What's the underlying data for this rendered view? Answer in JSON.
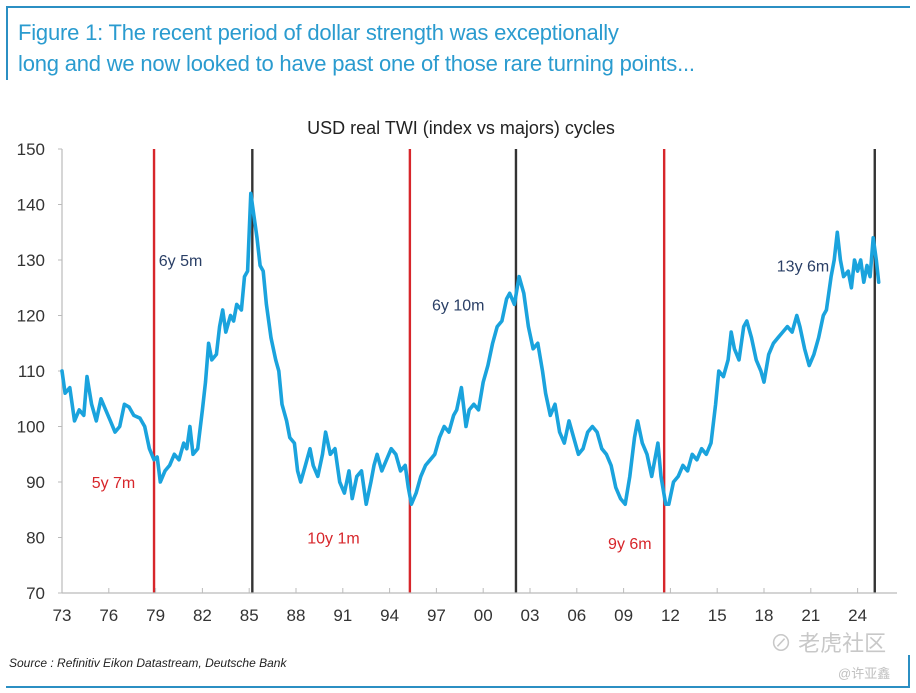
{
  "figure": {
    "title_line1": "Figure 1: The recent period of dollar strength was exceptionally",
    "title_line2": "long and we now looked to have past one of those rare turning points...",
    "source": "Source : Refinitiv Eikon Datastream, Deutsche Bank",
    "watermark_main": "⊘ 老虎社区",
    "watermark_user": "@许亚鑫"
  },
  "colors": {
    "line": "#1aa3dd",
    "trough_marker": "#d7262b",
    "peak_marker": "#333333",
    "title": "#2a9bcf",
    "accent_border": "#2b8fc3"
  },
  "chart_data": {
    "type": "line",
    "title": "USD real TWI (index vs majors) cycles",
    "xlabel": "",
    "ylabel": "",
    "xlim": [
      1973,
      2025.5
    ],
    "ylim": [
      70,
      150
    ],
    "y_ticks": [
      70,
      80,
      90,
      100,
      110,
      120,
      130,
      140,
      150
    ],
    "x_ticks": [
      1973,
      1976,
      1979,
      1982,
      1985,
      1988,
      1991,
      1994,
      1997,
      2000,
      2003,
      2006,
      2009,
      2012,
      2015,
      2018,
      2021,
      2024
    ],
    "x_tick_labels": [
      "73",
      "76",
      "79",
      "82",
      "85",
      "88",
      "91",
      "94",
      "97",
      "00",
      "03",
      "06",
      "09",
      "12",
      "15",
      "18",
      "21",
      "24"
    ],
    "grid": false,
    "series": [
      {
        "name": "USD real TWI",
        "points": [
          [
            1973.0,
            110
          ],
          [
            1973.2,
            106
          ],
          [
            1973.5,
            107
          ],
          [
            1973.8,
            101
          ],
          [
            1974.1,
            103
          ],
          [
            1974.4,
            102
          ],
          [
            1974.6,
            109
          ],
          [
            1974.9,
            104
          ],
          [
            1975.2,
            101
          ],
          [
            1975.5,
            105
          ],
          [
            1975.8,
            103
          ],
          [
            1976.1,
            101
          ],
          [
            1976.4,
            99
          ],
          [
            1976.7,
            100
          ],
          [
            1977.0,
            104
          ],
          [
            1977.3,
            103.5
          ],
          [
            1977.6,
            102
          ],
          [
            1978.0,
            101.5
          ],
          [
            1978.3,
            100
          ],
          [
            1978.6,
            96
          ],
          [
            1978.9,
            94
          ],
          [
            1979.1,
            94.5
          ],
          [
            1979.3,
            90
          ],
          [
            1979.6,
            92
          ],
          [
            1979.9,
            93
          ],
          [
            1980.2,
            95
          ],
          [
            1980.5,
            94
          ],
          [
            1980.8,
            97
          ],
          [
            1981.0,
            96
          ],
          [
            1981.2,
            100
          ],
          [
            1981.4,
            95
          ],
          [
            1981.7,
            96
          ],
          [
            1982.0,
            103
          ],
          [
            1982.2,
            108
          ],
          [
            1982.4,
            115
          ],
          [
            1982.6,
            112
          ],
          [
            1982.9,
            113
          ],
          [
            1983.1,
            118
          ],
          [
            1983.3,
            121
          ],
          [
            1983.5,
            117
          ],
          [
            1983.8,
            120
          ],
          [
            1984.0,
            119
          ],
          [
            1984.2,
            122
          ],
          [
            1984.5,
            121
          ],
          [
            1984.7,
            127
          ],
          [
            1984.9,
            128
          ],
          [
            1985.1,
            142
          ],
          [
            1985.3,
            138
          ],
          [
            1985.5,
            134
          ],
          [
            1985.7,
            129
          ],
          [
            1985.9,
            128
          ],
          [
            1986.1,
            122
          ],
          [
            1986.4,
            116
          ],
          [
            1986.7,
            112
          ],
          [
            1986.9,
            110
          ],
          [
            1987.1,
            104
          ],
          [
            1987.4,
            101
          ],
          [
            1987.6,
            98
          ],
          [
            1987.9,
            97
          ],
          [
            1988.1,
            92
          ],
          [
            1988.3,
            90
          ],
          [
            1988.6,
            93
          ],
          [
            1988.9,
            96
          ],
          [
            1989.1,
            93
          ],
          [
            1989.4,
            91
          ],
          [
            1989.7,
            95
          ],
          [
            1989.9,
            99
          ],
          [
            1990.2,
            95
          ],
          [
            1990.5,
            96
          ],
          [
            1990.8,
            90
          ],
          [
            1991.1,
            88
          ],
          [
            1991.4,
            92
          ],
          [
            1991.6,
            87
          ],
          [
            1991.9,
            91
          ],
          [
            1992.2,
            92
          ],
          [
            1992.5,
            86
          ],
          [
            1992.8,
            90
          ],
          [
            1993.0,
            93
          ],
          [
            1993.2,
            95
          ],
          [
            1993.5,
            92
          ],
          [
            1993.8,
            94
          ],
          [
            1994.1,
            96
          ],
          [
            1994.4,
            95
          ],
          [
            1994.7,
            92
          ],
          [
            1995.0,
            93
          ],
          [
            1995.2,
            89
          ],
          [
            1995.4,
            86
          ],
          [
            1995.7,
            88
          ],
          [
            1996.0,
            91
          ],
          [
            1996.3,
            93
          ],
          [
            1996.6,
            94
          ],
          [
            1996.9,
            95
          ],
          [
            1997.2,
            98
          ],
          [
            1997.5,
            100
          ],
          [
            1997.8,
            99
          ],
          [
            1998.1,
            102
          ],
          [
            1998.3,
            103
          ],
          [
            1998.6,
            107
          ],
          [
            1998.9,
            100
          ],
          [
            1999.1,
            103
          ],
          [
            1999.4,
            104
          ],
          [
            1999.7,
            103
          ],
          [
            2000.0,
            108
          ],
          [
            2000.3,
            111
          ],
          [
            2000.6,
            115
          ],
          [
            2000.9,
            118
          ],
          [
            2001.2,
            119
          ],
          [
            2001.5,
            123
          ],
          [
            2001.7,
            124
          ],
          [
            2002.0,
            122
          ],
          [
            2002.3,
            127
          ],
          [
            2002.6,
            124
          ],
          [
            2002.9,
            118
          ],
          [
            2003.2,
            114
          ],
          [
            2003.5,
            115
          ],
          [
            2003.8,
            110
          ],
          [
            2004.0,
            106
          ],
          [
            2004.3,
            102
          ],
          [
            2004.6,
            104
          ],
          [
            2004.9,
            99
          ],
          [
            2005.2,
            97
          ],
          [
            2005.5,
            101
          ],
          [
            2005.8,
            98
          ],
          [
            2006.1,
            95
          ],
          [
            2006.4,
            96
          ],
          [
            2006.7,
            99
          ],
          [
            2007.0,
            100
          ],
          [
            2007.3,
            99
          ],
          [
            2007.6,
            96
          ],
          [
            2007.9,
            95
          ],
          [
            2008.2,
            93
          ],
          [
            2008.5,
            89
          ],
          [
            2008.8,
            87
          ],
          [
            2009.1,
            86
          ],
          [
            2009.4,
            91
          ],
          [
            2009.7,
            98
          ],
          [
            2009.9,
            101
          ],
          [
            2010.2,
            97
          ],
          [
            2010.5,
            95
          ],
          [
            2010.8,
            91
          ],
          [
            2011.0,
            94
          ],
          [
            2011.2,
            97
          ],
          [
            2011.4,
            91
          ],
          [
            2011.7,
            86
          ],
          [
            2011.9,
            86
          ],
          [
            2012.2,
            90
          ],
          [
            2012.5,
            91
          ],
          [
            2012.8,
            93
          ],
          [
            2013.1,
            92
          ],
          [
            2013.4,
            95
          ],
          [
            2013.7,
            94
          ],
          [
            2014.0,
            96
          ],
          [
            2014.3,
            95
          ],
          [
            2014.6,
            97
          ],
          [
            2014.9,
            104
          ],
          [
            2015.1,
            110
          ],
          [
            2015.4,
            109
          ],
          [
            2015.7,
            112
          ],
          [
            2015.9,
            117
          ],
          [
            2016.1,
            114
          ],
          [
            2016.4,
            112
          ],
          [
            2016.7,
            118
          ],
          [
            2016.9,
            119
          ],
          [
            2017.2,
            116
          ],
          [
            2017.5,
            112
          ],
          [
            2017.8,
            110
          ],
          [
            2018.0,
            108
          ],
          [
            2018.3,
            113
          ],
          [
            2018.6,
            115
          ],
          [
            2018.9,
            116
          ],
          [
            2019.2,
            117
          ],
          [
            2019.5,
            118
          ],
          [
            2019.8,
            117
          ],
          [
            2020.1,
            120
          ],
          [
            2020.3,
            118
          ],
          [
            2020.6,
            114
          ],
          [
            2020.9,
            111
          ],
          [
            2021.2,
            113
          ],
          [
            2021.5,
            116
          ],
          [
            2021.8,
            120
          ],
          [
            2022.0,
            121
          ],
          [
            2022.3,
            127
          ],
          [
            2022.5,
            130
          ],
          [
            2022.7,
            135
          ],
          [
            2022.9,
            130
          ],
          [
            2023.1,
            127
          ],
          [
            2023.4,
            128
          ],
          [
            2023.6,
            125
          ],
          [
            2023.8,
            130
          ],
          [
            2024.0,
            128
          ],
          [
            2024.2,
            130
          ],
          [
            2024.4,
            126
          ],
          [
            2024.6,
            129
          ],
          [
            2024.8,
            127
          ],
          [
            2025.0,
            134
          ],
          [
            2025.2,
            130
          ],
          [
            2025.35,
            126
          ]
        ]
      }
    ],
    "cycle_markers": [
      {
        "x": 1978.9,
        "kind": "trough"
      },
      {
        "x": 1985.2,
        "kind": "peak"
      },
      {
        "x": 1995.3,
        "kind": "trough"
      },
      {
        "x": 2002.1,
        "kind": "peak"
      },
      {
        "x": 2011.6,
        "kind": "trough"
      },
      {
        "x": 2025.1,
        "kind": "peak"
      }
    ],
    "annotations": [
      {
        "text": "5y 7m",
        "x": 1976.3,
        "y": 90,
        "kind": "trough"
      },
      {
        "text": "6y 5m",
        "x": 1980.6,
        "y": 130,
        "kind": "peak"
      },
      {
        "text": "10y 1m",
        "x": 1990.4,
        "y": 80,
        "kind": "trough"
      },
      {
        "text": "6y 10m",
        "x": 1998.4,
        "y": 122,
        "kind": "peak"
      },
      {
        "text": "9y 6m",
        "x": 2009.4,
        "y": 79,
        "kind": "trough"
      },
      {
        "text": "13y 6m",
        "x": 2020.5,
        "y": 129,
        "kind": "peak"
      }
    ]
  }
}
